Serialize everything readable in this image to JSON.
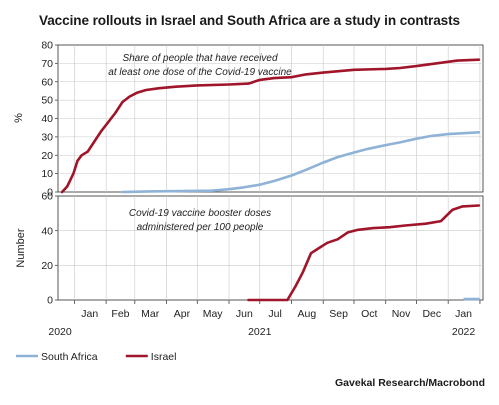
{
  "title": "Vaccine rollouts in Israel and South Africa are a study in contrasts",
  "source": "Gavekal Research/Macrobond",
  "colors": {
    "south_africa": "#8fb3d6",
    "israel": "#a01529"
  },
  "chart_data": [
    {
      "type": "line",
      "annotation": [
        "Share of people that have received",
        "at least one dose of the Covid-19 vaccine"
      ],
      "ylabel": "%",
      "ylim": [
        0,
        80
      ],
      "yticks": [
        0,
        10,
        20,
        30,
        40,
        50,
        60,
        70,
        80
      ],
      "grid": true,
      "series": [
        {
          "name": "Israel",
          "color": "#a01529",
          "points": [
            [
              "2020-12-20",
              0
            ],
            [
              "2020-12-25",
              3
            ],
            [
              "2020-12-31",
              10
            ],
            [
              "2021-01-04",
              17
            ],
            [
              "2021-01-08",
              20
            ],
            [
              "2021-01-14",
              22
            ],
            [
              "2021-01-20",
              27
            ],
            [
              "2021-01-27",
              33
            ],
            [
              "2021-02-03",
              38
            ],
            [
              "2021-02-10",
              43
            ],
            [
              "2021-02-17",
              49
            ],
            [
              "2021-02-24",
              52
            ],
            [
              "2021-03-03",
              54
            ],
            [
              "2021-03-12",
              55.5
            ],
            [
              "2021-03-25",
              56.5
            ],
            [
              "2021-04-10",
              57.3
            ],
            [
              "2021-05-01",
              58
            ],
            [
              "2021-06-01",
              58.5
            ],
            [
              "2021-06-20",
              59
            ],
            [
              "2021-07-01",
              61
            ],
            [
              "2021-07-15",
              62
            ],
            [
              "2021-08-01",
              62.5
            ],
            [
              "2021-08-15",
              64
            ],
            [
              "2021-09-01",
              65
            ],
            [
              "2021-10-01",
              66.5
            ],
            [
              "2021-11-01",
              67
            ],
            [
              "2021-11-15",
              67.5
            ],
            [
              "2021-12-01",
              68.5
            ],
            [
              "2021-12-20",
              70
            ],
            [
              "2022-01-10",
              71.5
            ],
            [
              "2022-01-31",
              72
            ]
          ]
        },
        {
          "name": "South Africa",
          "color": "#8fb3d6",
          "points": [
            [
              "2021-02-17",
              0
            ],
            [
              "2021-03-15",
              0.3
            ],
            [
              "2021-04-15",
              0.5
            ],
            [
              "2021-05-15",
              0.7
            ],
            [
              "2021-06-01",
              1.5
            ],
            [
              "2021-06-15",
              2.5
            ],
            [
              "2021-07-01",
              4
            ],
            [
              "2021-07-15",
              6
            ],
            [
              "2021-08-01",
              9
            ],
            [
              "2021-08-15",
              12
            ],
            [
              "2021-09-01",
              16
            ],
            [
              "2021-09-15",
              19
            ],
            [
              "2021-10-01",
              21.5
            ],
            [
              "2021-10-15",
              23.5
            ],
            [
              "2021-11-01",
              25.5
            ],
            [
              "2021-11-15",
              27
            ],
            [
              "2021-12-01",
              29
            ],
            [
              "2021-12-15",
              30.5
            ],
            [
              "2022-01-01",
              31.5
            ],
            [
              "2022-01-31",
              32.5
            ]
          ]
        }
      ]
    },
    {
      "type": "line",
      "annotation": [
        "Covid-19 vaccine booster doses",
        "administered per 100 people"
      ],
      "ylabel": "Number",
      "ylim": [
        0,
        60
      ],
      "yticks": [
        0,
        20,
        40,
        60
      ],
      "grid": true,
      "series": [
        {
          "name": "Israel",
          "color": "#a01529",
          "points": [
            [
              "2021-06-20",
              0
            ],
            [
              "2021-07-28",
              0
            ],
            [
              "2021-08-05",
              8
            ],
            [
              "2021-08-12",
              16
            ],
            [
              "2021-08-20",
              27
            ],
            [
              "2021-08-28",
              30
            ],
            [
              "2021-09-05",
              33
            ],
            [
              "2021-09-15",
              35
            ],
            [
              "2021-09-25",
              39
            ],
            [
              "2021-10-05",
              40.5
            ],
            [
              "2021-10-20",
              41.5
            ],
            [
              "2021-11-05",
              42
            ],
            [
              "2021-11-20",
              43
            ],
            [
              "2021-12-10",
              44
            ],
            [
              "2021-12-25",
              45.5
            ],
            [
              "2022-01-05",
              52
            ],
            [
              "2022-01-15",
              54
            ],
            [
              "2022-01-31",
              54.5
            ]
          ]
        },
        {
          "name": "South Africa",
          "color": "#8fb3d6",
          "points": [
            [
              "2022-01-17",
              0.5
            ],
            [
              "2022-01-31",
              0.5
            ]
          ]
        }
      ]
    }
  ],
  "x_axis": {
    "domain": [
      "2020-12-16",
      "2022-02-04"
    ],
    "month_labels": [
      "Jan",
      "Feb",
      "Mar",
      "Apr",
      "May",
      "Jun",
      "Jul",
      "Aug",
      "Sep",
      "Oct",
      "Nov",
      "Dec",
      "Jan"
    ],
    "month_dates": [
      "2021-01-16",
      "2021-02-15",
      "2021-03-16",
      "2021-04-16",
      "2021-05-16",
      "2021-06-16",
      "2021-07-16",
      "2021-08-16",
      "2021-09-16",
      "2021-10-16",
      "2021-11-16",
      "2021-12-16",
      "2022-01-16"
    ],
    "month_ticks": [
      "2021-01-01",
      "2021-02-01",
      "2021-03-01",
      "2021-04-01",
      "2021-05-01",
      "2021-06-01",
      "2021-07-01",
      "2021-08-01",
      "2021-09-01",
      "2021-10-01",
      "2021-11-01",
      "2021-12-01",
      "2022-01-01",
      "2022-02-01"
    ],
    "year_labels": [
      {
        "label": "2020",
        "date": "2020-12-18"
      },
      {
        "label": "2021",
        "date": "2021-07-01"
      },
      {
        "label": "2022",
        "date": "2022-01-16"
      }
    ]
  },
  "legend": {
    "position": "bottom-left",
    "items": [
      "South Africa",
      "Israel"
    ]
  }
}
